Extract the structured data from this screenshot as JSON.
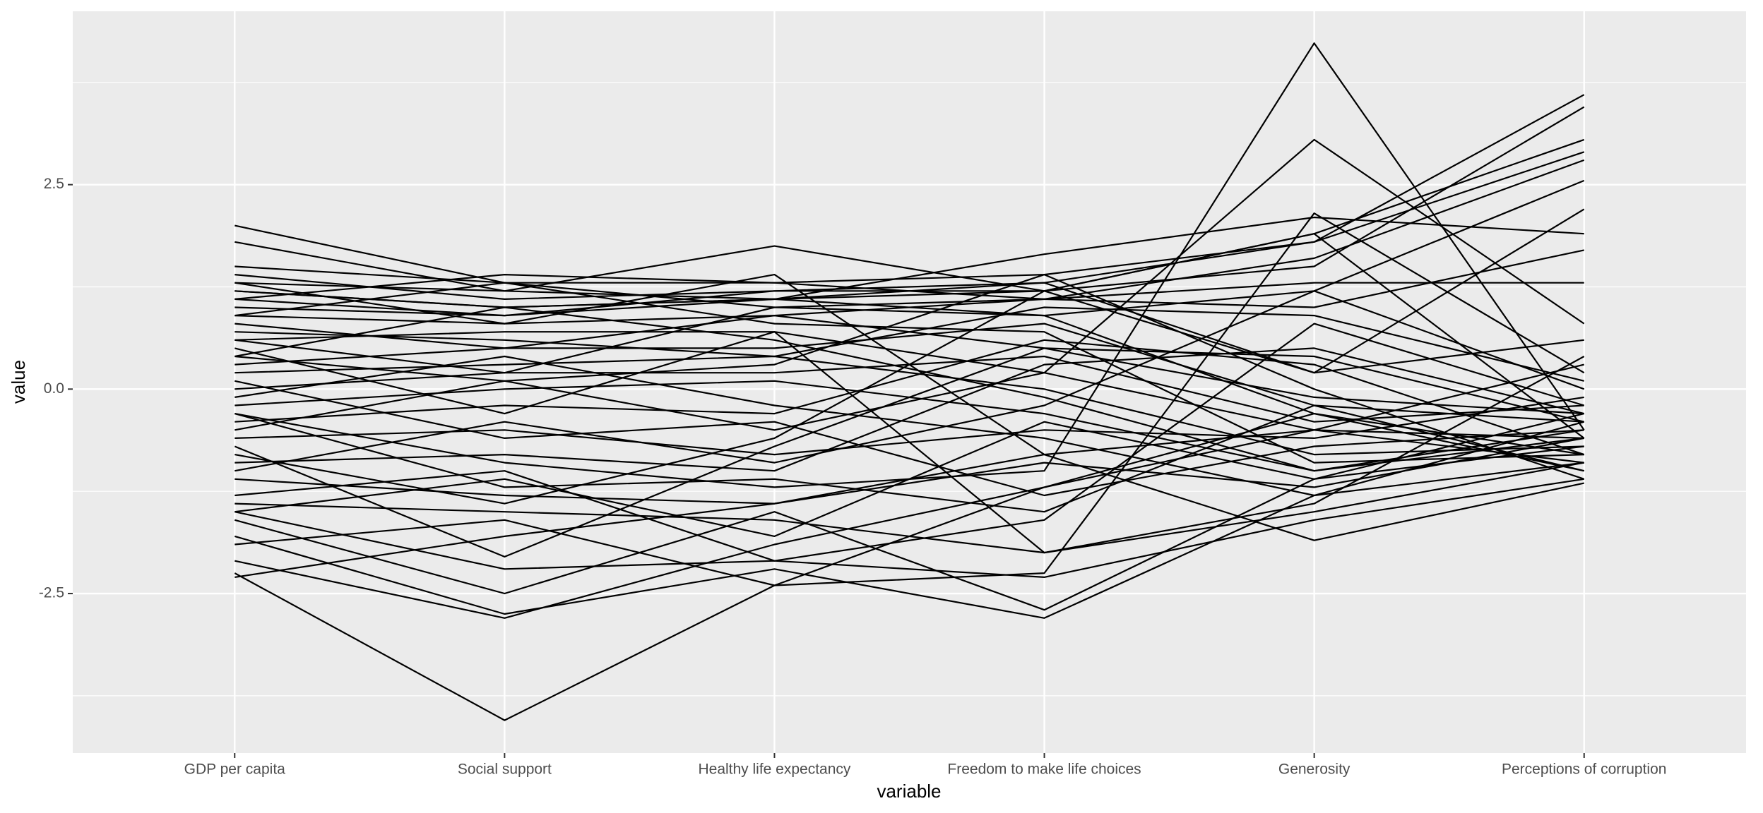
{
  "chart_data": {
    "type": "parallel",
    "xlabel": "variable",
    "ylabel": "value",
    "categories": [
      "GDP per capita",
      "Social support",
      "Healthy life expectancy",
      "Freedom to make life choices",
      "Generosity",
      "Perceptions of corruption"
    ],
    "color": "#000000",
    "grid": true,
    "ylim": [
      -4.45,
      4.62
    ],
    "yticks": [
      -2.5,
      {
        "value": 0,
        "label": "0.0"
      },
      2.5
    ],
    "series": [
      {
        "values": [
          -2.25,
          -4.05,
          -2.4,
          -1.2,
          -0.5,
          -0.9
        ]
      },
      {
        "values": [
          -0.3,
          -0.9,
          -1.2,
          -1.0,
          4.23,
          -0.5
        ]
      },
      {
        "values": [
          0.4,
          0.1,
          -0.5,
          0.2,
          3.05,
          0.8
        ]
      },
      {
        "values": [
          1.2,
          1.0,
          1.1,
          1.3,
          1.8,
          3.6
        ]
      },
      {
        "values": [
          1.4,
          1.1,
          1.2,
          1.2,
          1.5,
          3.45
        ]
      },
      {
        "values": [
          1.3,
          1.2,
          1.1,
          1.2,
          1.9,
          3.05
        ]
      },
      {
        "values": [
          1.5,
          1.3,
          1.3,
          1.4,
          1.8,
          2.9
        ]
      },
      {
        "values": [
          1.1,
          1.4,
          1.3,
          1.1,
          1.6,
          2.8
        ]
      },
      {
        "values": [
          2.0,
          1.3,
          1.0,
          0.9,
          1.2,
          2.55
        ]
      },
      {
        "values": [
          1.8,
          1.2,
          1.75,
          1.2,
          0.2,
          2.2
        ]
      },
      {
        "values": [
          1.0,
          0.9,
          1.1,
          1.65,
          2.1,
          1.9
        ]
      },
      {
        "values": [
          0.9,
          0.8,
          0.9,
          1.1,
          1.0,
          1.7
        ]
      },
      {
        "values": [
          0.8,
          0.5,
          0.9,
          0.5,
          -0.1,
          -0.3
        ]
      },
      {
        "values": [
          0.6,
          0.7,
          0.7,
          0.2,
          -0.5,
          -0.6
        ]
      },
      {
        "values": [
          0.3,
          0.5,
          0.5,
          0.8,
          -0.2,
          -0.4
        ]
      },
      {
        "values": [
          0.2,
          0.3,
          0.4,
          0.0,
          -0.8,
          -0.7
        ]
      },
      {
        "values": [
          0.0,
          0.2,
          0.2,
          0.4,
          -0.4,
          -0.2
        ]
      },
      {
        "values": [
          -0.2,
          0.0,
          0.1,
          -0.3,
          -1.0,
          -0.5
        ]
      },
      {
        "values": [
          -0.4,
          -0.2,
          -0.3,
          0.6,
          0.3,
          -0.8
        ]
      },
      {
        "values": [
          -0.6,
          -0.5,
          -0.8,
          -0.5,
          -0.6,
          -0.1
        ]
      },
      {
        "values": [
          -0.9,
          -0.8,
          -1.0,
          0.3,
          0.5,
          -0.3
        ]
      },
      {
        "values": [
          -1.1,
          -1.3,
          -1.4,
          -0.9,
          -1.2,
          -0.6
        ]
      },
      {
        "values": [
          -1.4,
          -1.5,
          -1.6,
          -2.0,
          -1.5,
          -0.9
        ]
      },
      {
        "values": [
          -1.5,
          -2.2,
          -2.1,
          -2.3,
          -1.6,
          -1.1
        ]
      },
      {
        "values": [
          -2.1,
          -2.8,
          -1.9,
          -1.2,
          -0.3,
          -0.8
        ]
      },
      {
        "values": [
          -1.8,
          -2.75,
          -2.2,
          -2.8,
          -1.3,
          -0.4
        ]
      },
      {
        "values": [
          -1.6,
          -2.5,
          -1.5,
          -2.7,
          -1.1,
          -0.7
        ]
      },
      {
        "values": [
          -2.3,
          -1.8,
          -1.4,
          -0.8,
          -1.85,
          -1.15
        ]
      },
      {
        "values": [
          -1.3,
          -1.0,
          -2.1,
          -1.6,
          0.8,
          -0.2
        ]
      },
      {
        "values": [
          -0.8,
          -1.4,
          -0.6,
          1.2,
          1.9,
          -0.6
        ]
      },
      {
        "values": [
          0.5,
          -0.3,
          0.7,
          -2.0,
          -1.4,
          0.4
        ]
      },
      {
        "values": [
          1.1,
          0.9,
          1.2,
          1.3,
          0.2,
          0.6
        ]
      },
      {
        "values": [
          1.2,
          1.0,
          1.1,
          0.9,
          -0.3,
          -1.0
        ]
      },
      {
        "values": [
          0.7,
          0.6,
          0.4,
          1.0,
          0.9,
          0.1
        ]
      },
      {
        "values": [
          -0.1,
          0.4,
          -0.2,
          -0.6,
          -1.3,
          -0.9
        ]
      },
      {
        "values": [
          -0.5,
          0.1,
          0.3,
          1.4,
          0.0,
          -1.1
        ]
      },
      {
        "values": [
          0.1,
          -0.6,
          -0.4,
          -1.3,
          -0.7,
          -0.5
        ]
      },
      {
        "values": [
          -1.0,
          -0.4,
          -0.9,
          -0.2,
          1.2,
          0.0
        ]
      },
      {
        "values": [
          0.9,
          1.3,
          0.8,
          0.7,
          -0.9,
          -0.8
        ]
      },
      {
        "values": [
          -1.5,
          -1.1,
          -1.8,
          -0.4,
          -1.1,
          -0.3
        ]
      },
      {
        "values": [
          1.3,
          0.8,
          1.4,
          -0.8,
          -0.5,
          0.3
        ]
      },
      {
        "values": [
          -0.7,
          -2.05,
          -0.7,
          0.5,
          0.4,
          -0.4
        ]
      },
      {
        "values": [
          0.4,
          1.0,
          0.6,
          -0.1,
          -1.0,
          -0.6
        ]
      },
      {
        "values": [
          -1.9,
          -1.6,
          -2.4,
          -2.25,
          2.15,
          0.2
        ]
      },
      {
        "values": [
          0.6,
          0.2,
          1.0,
          1.1,
          1.3,
          1.3
        ]
      },
      {
        "values": [
          -0.3,
          -1.2,
          -1.1,
          -1.5,
          -0.2,
          -1.0
        ]
      }
    ]
  }
}
